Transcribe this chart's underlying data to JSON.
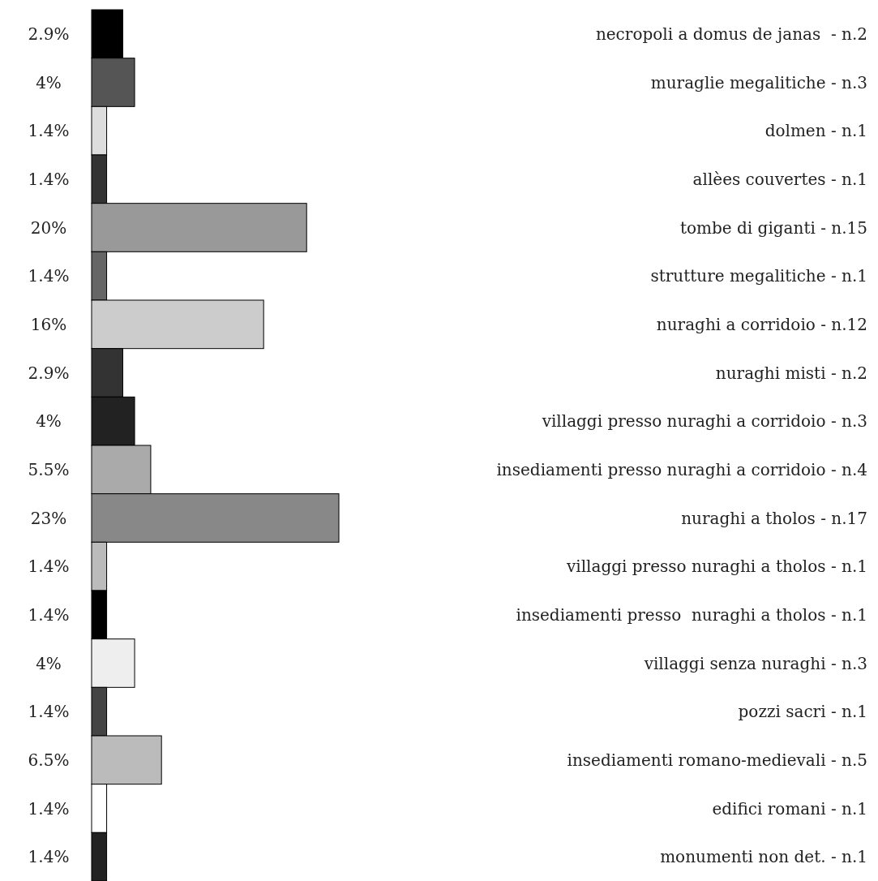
{
  "chart_data": {
    "type": "bar",
    "orientation": "horizontal",
    "categories": [
      "necropoli a domus de janas  - n.2",
      "muraglie megalitiche - n.3",
      "dolmen - n.1",
      "allèes couvertes - n.1",
      "tombe di giganti - n.15",
      "strutture megalitiche - n.1",
      "nuraghi a corridoio - n.12",
      "nuraghi misti - n.2",
      "villaggi presso nuraghi a corridoio - n.3",
      "insediamenti presso nuraghi a corridoio - n.4",
      "nuraghi a tholos - n.17",
      "villaggi presso nuraghi a tholos - n.1",
      "insediamenti presso  nuraghi a tholos - n.1",
      "villaggi senza nuraghi - n.3",
      "pozzi sacri - n.1",
      "insediamenti romano-medievali - n.5",
      "edifici romani - n.1",
      "monumenti non det. - n.1"
    ],
    "values": [
      2.9,
      4,
      1.4,
      1.4,
      20,
      1.4,
      16,
      2.9,
      4,
      5.5,
      23,
      1.4,
      1.4,
      4,
      1.4,
      6.5,
      1.4,
      1.4
    ],
    "value_labels": [
      "2.9%",
      "4%",
      "1.4%",
      "1.4%",
      "20%",
      "1.4%",
      "16%",
      "2.9%",
      "4%",
      "5.5%",
      "23%",
      "1.4%",
      "1.4%",
      "4%",
      "1.4%",
      "6.5%",
      "1.4%",
      "1.4%"
    ],
    "colors": [
      "#000000",
      "#555555",
      "#dddddd",
      "#333333",
      "#999999",
      "#666666",
      "#cccccc",
      "#333333",
      "#222222",
      "#aaaaaa",
      "#888888",
      "#bbbbbb",
      "#000000",
      "#eeeeee",
      "#444444",
      "#bbbbbb",
      "#ffffff",
      "#222222"
    ]
  }
}
